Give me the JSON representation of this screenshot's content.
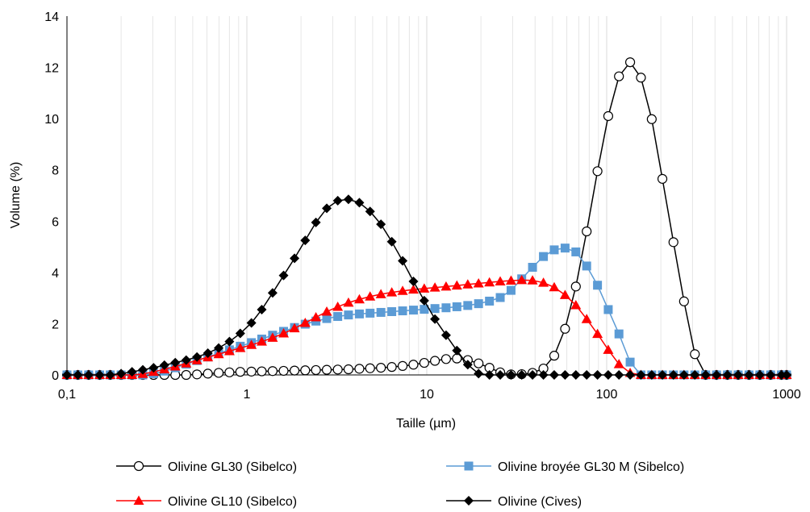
{
  "chart_data": {
    "type": "line",
    "xlabel": "Taille (µm)",
    "ylabel": "Volume (%)",
    "x_scale": "log",
    "xlim": [
      0.1,
      1000
    ],
    "ylim": [
      0,
      14
    ],
    "x_ticks": [
      0.1,
      1,
      10,
      100,
      1000
    ],
    "x_tick_labels": [
      "0,1",
      "1",
      "10",
      "100",
      "1000"
    ],
    "y_ticks": [
      0,
      2,
      4,
      6,
      8,
      10,
      12,
      14
    ],
    "y_tick_labels": [
      "0",
      "2",
      "4",
      "6",
      "8",
      "10",
      "12",
      "14"
    ],
    "grid": "vertical major and minor",
    "legend_position": "bottom",
    "series": [
      {
        "name": "Olivine GL30 (Sibelco)",
        "color": "#000000",
        "marker": "circle-open",
        "x": [
          0.1,
          0.115,
          0.132,
          0.152,
          0.174,
          0.2,
          0.23,
          0.264,
          0.303,
          0.348,
          0.4,
          0.46,
          0.528,
          0.607,
          0.697,
          0.8,
          0.919,
          1.06,
          1.21,
          1.39,
          1.6,
          1.84,
          2.11,
          2.42,
          2.78,
          3.2,
          3.67,
          4.22,
          4.84,
          5.56,
          6.39,
          7.34,
          8.43,
          9.68,
          11.1,
          12.8,
          14.7,
          16.9,
          19.4,
          22.3,
          25.6,
          29.4,
          33.7,
          38.7,
          44.5,
          51.1,
          58.7,
          67.4,
          77.4,
          88.9,
          102,
          117,
          135,
          155,
          178,
          204,
          235,
          269,
          309,
          355,
          408,
          469,
          538,
          618,
          710,
          815,
          936,
          1000
        ],
        "y": [
          0,
          0,
          0,
          0,
          0,
          0,
          0,
          0,
          0,
          0,
          0,
          0,
          0.02,
          0.05,
          0.08,
          0.1,
          0.12,
          0.13,
          0.14,
          0.15,
          0.16,
          0.17,
          0.18,
          0.19,
          0.2,
          0.21,
          0.22,
          0.24,
          0.26,
          0.28,
          0.31,
          0.35,
          0.4,
          0.47,
          0.55,
          0.62,
          0.64,
          0.58,
          0.45,
          0.28,
          0.1,
          0.02,
          0.03,
          0.08,
          0.25,
          0.75,
          1.8,
          3.45,
          5.6,
          7.95,
          10.1,
          11.65,
          12.2,
          11.6,
          9.98,
          7.65,
          5.18,
          2.87,
          0.81,
          0,
          0,
          0,
          0,
          0,
          0,
          0,
          0,
          0
        ]
      },
      {
        "name": "Olivine broyée GL30 M (Sibelco)",
        "color": "#5b9bd5",
        "marker": "square",
        "x": [
          0.1,
          0.115,
          0.132,
          0.152,
          0.174,
          0.2,
          0.23,
          0.264,
          0.303,
          0.348,
          0.4,
          0.46,
          0.528,
          0.607,
          0.697,
          0.8,
          0.919,
          1.06,
          1.21,
          1.39,
          1.6,
          1.84,
          2.11,
          2.42,
          2.78,
          3.2,
          3.67,
          4.22,
          4.84,
          5.56,
          6.39,
          7.34,
          8.43,
          9.68,
          11.1,
          12.8,
          14.7,
          16.9,
          19.4,
          22.3,
          25.6,
          29.4,
          33.7,
          38.7,
          44.5,
          51.1,
          58.7,
          67.4,
          77.4,
          88.9,
          102,
          117,
          135,
          155,
          178,
          204,
          235,
          269,
          309,
          355,
          408,
          469,
          538,
          618,
          710,
          815,
          936,
          1000
        ],
        "y": [
          0,
          0,
          0,
          0,
          0,
          0,
          0,
          0,
          0.05,
          0.15,
          0.28,
          0.42,
          0.56,
          0.7,
          0.84,
          0.98,
          1.12,
          1.26,
          1.4,
          1.55,
          1.7,
          1.85,
          1.98,
          2.1,
          2.2,
          2.28,
          2.34,
          2.38,
          2.41,
          2.44,
          2.47,
          2.5,
          2.53,
          2.56,
          2.59,
          2.62,
          2.66,
          2.71,
          2.78,
          2.88,
          3.02,
          3.3,
          3.75,
          4.2,
          4.62,
          4.88,
          4.95,
          4.8,
          4.25,
          3.5,
          2.55,
          1.6,
          0.5,
          0,
          0,
          0,
          0,
          0,
          0,
          0,
          0,
          0,
          0,
          0,
          0,
          0,
          0,
          0
        ]
      },
      {
        "name": "Olivine GL10 (Sibelco)",
        "color": "#ff0000",
        "marker": "triangle",
        "x": [
          0.1,
          0.115,
          0.132,
          0.152,
          0.174,
          0.2,
          0.23,
          0.264,
          0.303,
          0.348,
          0.4,
          0.46,
          0.528,
          0.607,
          0.697,
          0.8,
          0.919,
          1.06,
          1.21,
          1.39,
          1.6,
          1.84,
          2.11,
          2.42,
          2.78,
          3.2,
          3.67,
          4.22,
          4.84,
          5.56,
          6.39,
          7.34,
          8.43,
          9.68,
          11.1,
          12.8,
          14.7,
          16.9,
          19.4,
          22.3,
          25.6,
          29.4,
          33.7,
          38.7,
          44.5,
          51.1,
          58.7,
          67.4,
          77.4,
          88.9,
          102,
          117,
          135,
          155,
          178,
          204,
          235,
          269,
          309,
          355,
          408,
          469,
          538,
          618,
          710,
          815,
          936,
          1000
        ],
        "y": [
          0,
          0,
          0,
          0,
          0,
          0,
          0,
          0.04,
          0.12,
          0.22,
          0.33,
          0.45,
          0.57,
          0.69,
          0.81,
          0.93,
          1.05,
          1.17,
          1.3,
          1.45,
          1.62,
          1.82,
          2.03,
          2.25,
          2.47,
          2.66,
          2.82,
          2.95,
          3.06,
          3.15,
          3.22,
          3.28,
          3.33,
          3.37,
          3.41,
          3.45,
          3.49,
          3.53,
          3.57,
          3.61,
          3.65,
          3.68,
          3.7,
          3.69,
          3.6,
          3.42,
          3.12,
          2.72,
          2.18,
          1.6,
          0.98,
          0.42,
          0.08,
          0,
          0,
          0,
          0,
          0,
          0,
          0,
          0,
          0,
          0,
          0,
          0,
          0,
          0,
          0
        ]
      },
      {
        "name": "Olivine (Cives)",
        "color": "#000000",
        "marker": "diamond",
        "x": [
          0.1,
          0.115,
          0.132,
          0.152,
          0.174,
          0.2,
          0.23,
          0.264,
          0.303,
          0.348,
          0.4,
          0.46,
          0.528,
          0.607,
          0.697,
          0.8,
          0.919,
          1.06,
          1.21,
          1.39,
          1.6,
          1.84,
          2.11,
          2.42,
          2.78,
          3.2,
          3.67,
          4.22,
          4.84,
          5.56,
          6.39,
          7.34,
          8.43,
          9.68,
          11.1,
          12.8,
          14.7,
          16.9,
          19.4,
          22.3,
          25.6,
          29.4,
          33.7,
          38.7,
          44.5,
          51.1,
          58.7,
          67.4,
          77.4,
          88.9,
          102,
          117,
          135,
          155,
          178,
          204,
          235,
          269,
          309,
          355,
          408,
          469,
          538,
          618,
          710,
          815,
          936,
          1000
        ],
        "y": [
          0,
          0,
          0,
          0,
          0,
          0.05,
          0.12,
          0.2,
          0.28,
          0.38,
          0.48,
          0.58,
          0.7,
          0.85,
          1.05,
          1.3,
          1.62,
          2.03,
          2.55,
          3.2,
          3.88,
          4.55,
          5.25,
          5.95,
          6.5,
          6.8,
          6.85,
          6.72,
          6.38,
          5.88,
          5.2,
          4.45,
          3.65,
          2.9,
          2.18,
          1.55,
          0.95,
          0.4,
          0.05,
          0,
          0,
          0,
          0,
          0,
          0,
          0,
          0,
          0,
          0,
          0,
          0,
          0,
          0,
          0,
          0,
          0,
          0,
          0,
          0,
          0,
          0,
          0,
          0,
          0,
          0,
          0,
          0,
          0
        ]
      }
    ]
  }
}
